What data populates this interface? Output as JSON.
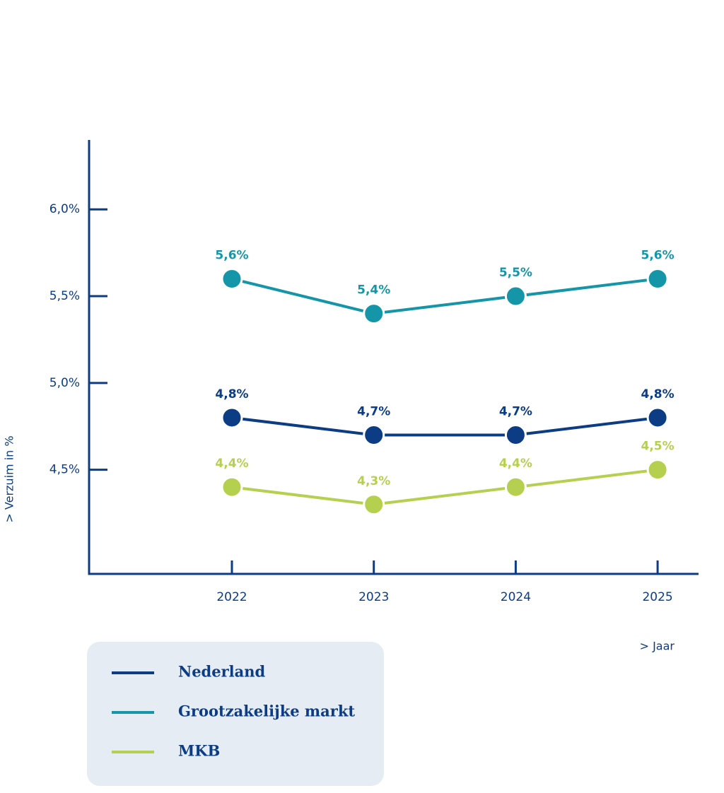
{
  "chart_data": {
    "type": "line",
    "y_label": "> Verzuim in %",
    "x_label": "> Jaar",
    "categories": [
      "2022",
      "2023",
      "2024",
      "2025"
    ],
    "series": [
      {
        "name": "Nederland",
        "color": "#0b3c84",
        "values": [
          4.8,
          4.7,
          4.7,
          4.8
        ],
        "value_labels": [
          "4,8%",
          "4,7%",
          "4,7%",
          "4,8%"
        ]
      },
      {
        "name": "Grootzakelijke markt",
        "color": "#1596a8",
        "values": [
          5.6,
          5.4,
          5.5,
          5.6
        ],
        "value_labels": [
          "5,6%",
          "5,4%",
          "5,5%",
          "5,6%"
        ]
      },
      {
        "name": "MKB",
        "color": "#b5d04f",
        "values": [
          4.4,
          4.3,
          4.4,
          4.5
        ],
        "value_labels": [
          "4,4%",
          "4,3%",
          "4,4%",
          "4,5%"
        ]
      }
    ],
    "ylim": [
      3.9,
      6.4
    ],
    "yticks": [
      {
        "value": 4.5,
        "label": "4,5%"
      },
      {
        "value": 5.0,
        "label": "5,0%"
      },
      {
        "value": 5.5,
        "label": "5,5%"
      },
      {
        "value": 6.0,
        "label": "6,0%"
      }
    ]
  }
}
